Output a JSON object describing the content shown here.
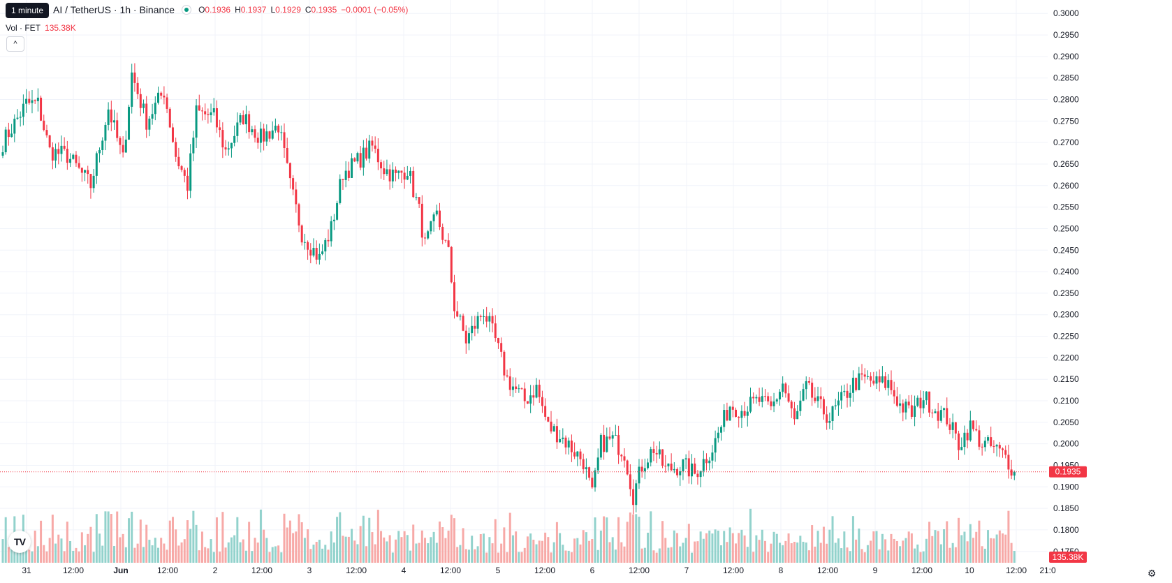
{
  "tooltip": "1 minute",
  "legend": {
    "title": "AI / TetherUS · 1h · Binance",
    "ohlc": [
      {
        "k": "O",
        "v": "0.1936"
      },
      {
        "k": "H",
        "v": "0.1937"
      },
      {
        "k": "L",
        "v": "0.1929"
      },
      {
        "k": "C",
        "v": "0.1935"
      }
    ],
    "change": "−0.0001 (−0.05%)",
    "vol_label": "Vol · FET",
    "vol_value": "135.38K"
  },
  "colors": {
    "up": "#089981",
    "down": "#f23645",
    "up_vol": "#92d2cc",
    "down_vol": "#f7a9a7",
    "grid": "#f0f3fa"
  },
  "icons": {
    "collapse": "chevron-up-icon",
    "logo": "tradingview-logo",
    "settings": "gear-icon"
  },
  "logo_text": "TV",
  "collapse_glyph": "^",
  "settings_glyph": "⚙",
  "chart_data": {
    "type": "candlestick",
    "title": "AI / TetherUS · 1h · Binance",
    "ylim": [
      0.1735,
      0.3015
    ],
    "y_ticks": [
      "0.3000",
      "0.2950",
      "0.2900",
      "0.2850",
      "0.2800",
      "0.2750",
      "0.2700",
      "0.2650",
      "0.2600",
      "0.2550",
      "0.2500",
      "0.2450",
      "0.2400",
      "0.2350",
      "0.2300",
      "0.2250",
      "0.2200",
      "0.2150",
      "0.2100",
      "0.2050",
      "0.2000",
      "0.1950",
      "0.1900",
      "0.1850",
      "0.1800",
      "0.1750"
    ],
    "x_ticks": [
      "31",
      "12:00",
      "Jun",
      "12:00",
      "2",
      "12:00",
      "3",
      "12:00",
      "4",
      "12:00",
      "5",
      "12:00",
      "6",
      "12:00",
      "7",
      "12:00",
      "8",
      "12:00",
      "9",
      "12:00",
      "10",
      "12:00",
      "21:0"
    ],
    "last_price": "0.1935",
    "last_volume": "135.38K",
    "anchors": [
      {
        "t": 0,
        "p": 0.27
      },
      {
        "t": 8,
        "p": 0.279
      },
      {
        "t": 12,
        "p": 0.279
      },
      {
        "t": 16,
        "p": 0.268
      },
      {
        "t": 22,
        "p": 0.267
      },
      {
        "t": 30,
        "p": 0.26
      },
      {
        "t": 36,
        "p": 0.278
      },
      {
        "t": 41,
        "p": 0.266
      },
      {
        "t": 44,
        "p": 0.286
      },
      {
        "t": 49,
        "p": 0.275
      },
      {
        "t": 55,
        "p": 0.282
      },
      {
        "t": 59,
        "p": 0.267
      },
      {
        "t": 63,
        "p": 0.26
      },
      {
        "t": 66,
        "p": 0.277
      },
      {
        "t": 72,
        "p": 0.276
      },
      {
        "t": 76,
        "p": 0.268
      },
      {
        "t": 82,
        "p": 0.276
      },
      {
        "t": 88,
        "p": 0.271
      },
      {
        "t": 94,
        "p": 0.274
      },
      {
        "t": 98,
        "p": 0.26
      },
      {
        "t": 102,
        "p": 0.249
      },
      {
        "t": 106,
        "p": 0.245
      },
      {
        "t": 108,
        "p": 0.243
      },
      {
        "t": 112,
        "p": 0.25
      },
      {
        "t": 116,
        "p": 0.263
      },
      {
        "t": 120,
        "p": 0.265
      },
      {
        "t": 126,
        "p": 0.269
      },
      {
        "t": 130,
        "p": 0.264
      },
      {
        "t": 134,
        "p": 0.262
      },
      {
        "t": 138,
        "p": 0.264
      },
      {
        "t": 142,
        "p": 0.254
      },
      {
        "t": 144,
        "p": 0.246
      },
      {
        "t": 148,
        "p": 0.253
      },
      {
        "t": 152,
        "p": 0.244
      },
      {
        "t": 154,
        "p": 0.232
      },
      {
        "t": 158,
        "p": 0.224
      },
      {
        "t": 164,
        "p": 0.231
      },
      {
        "t": 168,
        "p": 0.224
      },
      {
        "t": 172,
        "p": 0.215
      },
      {
        "t": 178,
        "p": 0.21
      },
      {
        "t": 182,
        "p": 0.213
      },
      {
        "t": 186,
        "p": 0.204
      },
      {
        "t": 190,
        "p": 0.202
      },
      {
        "t": 194,
        "p": 0.199
      },
      {
        "t": 198,
        "p": 0.196
      },
      {
        "t": 201,
        "p": 0.188
      },
      {
        "t": 204,
        "p": 0.2
      },
      {
        "t": 208,
        "p": 0.201
      },
      {
        "t": 212,
        "p": 0.198
      },
      {
        "t": 215,
        "p": 0.188
      },
      {
        "t": 218,
        "p": 0.195
      },
      {
        "t": 222,
        "p": 0.199
      },
      {
        "t": 226,
        "p": 0.194
      },
      {
        "t": 232,
        "p": 0.195
      },
      {
        "t": 236,
        "p": 0.193
      },
      {
        "t": 242,
        "p": 0.199
      },
      {
        "t": 248,
        "p": 0.209
      },
      {
        "t": 252,
        "p": 0.208
      },
      {
        "t": 258,
        "p": 0.21
      },
      {
        "t": 262,
        "p": 0.208
      },
      {
        "t": 266,
        "p": 0.214
      },
      {
        "t": 270,
        "p": 0.205
      },
      {
        "t": 274,
        "p": 0.213
      },
      {
        "t": 278,
        "p": 0.209
      },
      {
        "t": 282,
        "p": 0.206
      },
      {
        "t": 286,
        "p": 0.21
      },
      {
        "t": 290,
        "p": 0.214
      },
      {
        "t": 294,
        "p": 0.215
      },
      {
        "t": 298,
        "p": 0.214
      },
      {
        "t": 302,
        "p": 0.214
      },
      {
        "t": 306,
        "p": 0.209
      },
      {
        "t": 310,
        "p": 0.207
      },
      {
        "t": 314,
        "p": 0.211
      },
      {
        "t": 318,
        "p": 0.208
      },
      {
        "t": 322,
        "p": 0.206
      },
      {
        "t": 326,
        "p": 0.2
      },
      {
        "t": 330,
        "p": 0.204
      },
      {
        "t": 334,
        "p": 0.2
      },
      {
        "t": 338,
        "p": 0.199
      },
      {
        "t": 342,
        "p": 0.197
      },
      {
        "t": 345,
        "p": 0.1935
      }
    ]
  }
}
